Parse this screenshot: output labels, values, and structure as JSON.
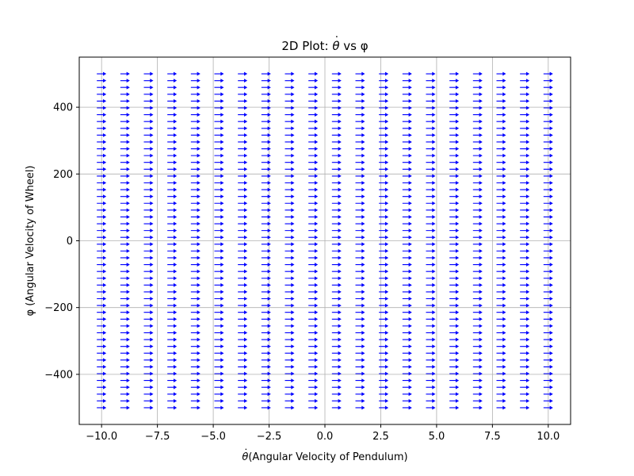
{
  "chart_data": {
    "type": "quiver",
    "title": {
      "prefix": "2D Plot: ",
      "var": "θ",
      "suffix": " vs φ"
    },
    "xlabel": {
      "var": "θ",
      "text": "(Angular Velocity of Pendulum)"
    },
    "ylabel": {
      "text": "φ (Angular Velocity of Wheel)"
    },
    "xlim": [
      -11,
      11
    ],
    "ylim": [
      -550,
      550
    ],
    "xticks": [
      -10.0,
      -7.5,
      -5.0,
      -2.5,
      0.0,
      2.5,
      5.0,
      7.5,
      10.0
    ],
    "xtick_labels": [
      "−10.0",
      "−7.5",
      "−5.0",
      "−2.5",
      "0.0",
      "2.5",
      "5.0",
      "7.5",
      "10.0"
    ],
    "yticks": [
      -400,
      -200,
      0,
      200,
      400
    ],
    "ytick_labels": [
      "−400",
      "−200",
      "0",
      "200",
      "400"
    ],
    "grid": true,
    "arrow_color": "#0000ff",
    "grid_x": {
      "start": -10,
      "stop": 10,
      "count": 20
    },
    "grid_y": {
      "start": -500,
      "stop": 500,
      "count": 50
    },
    "vector_field": {
      "u": 1,
      "v": 0,
      "description": "all arrows point to the right (+x) with equal length"
    }
  }
}
